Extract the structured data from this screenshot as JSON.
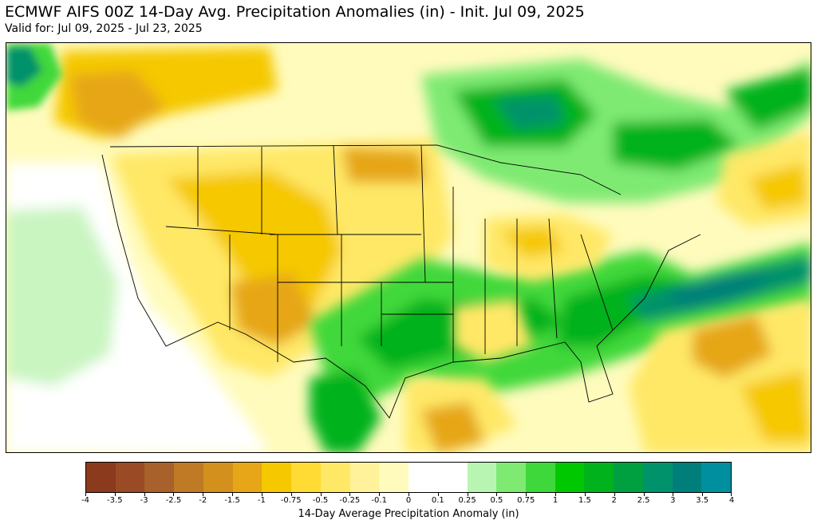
{
  "header": {
    "title": "ECMWF AIFS 00Z 14-Day Avg. Precipitation Anomalies (in) - Init. Jul 09, 2025",
    "subtitle": "Valid for: Jul 09, 2025 - Jul 23, 2025"
  },
  "colorbar": {
    "label": "14-Day Average Precipitation Anomaly (in)",
    "ticks": [
      "-4",
      "-3.5",
      "-3",
      "-2.5",
      "-2",
      "-1.5",
      "-1",
      "-0.75",
      "-0.5",
      "-0.25",
      "-0.1",
      "0",
      "0.1",
      "0.25",
      "0.5",
      "0.75",
      "1",
      "1.5",
      "2",
      "2.5",
      "3",
      "3.5",
      "4"
    ],
    "colors": [
      "#8b3a1e",
      "#9a4a25",
      "#a8612b",
      "#c07a25",
      "#d4901d",
      "#e6a618",
      "#f5c800",
      "#ffdb33",
      "#ffe866",
      "#fff29a",
      "#fffbbd",
      "#ffffff",
      "#ffffff",
      "#b8f5b2",
      "#7eea72",
      "#3fd83a",
      "#00c800",
      "#00b21c",
      "#00a040",
      "#00926a",
      "#007f7a",
      "#008f9e",
      "#00a3b8"
    ]
  },
  "map": {
    "region": "Continental United States",
    "palette": {
      "ocean_west": "#c9f5c1",
      "coast_white": "#ffffff",
      "dry_light": "#fffbbd",
      "dry_mid": "#ffe866",
      "dry_strong": "#f5c800",
      "dry_deep": "#e6a618",
      "dry_brown": "#c07a25",
      "wet_light": "#b8f5b2",
      "wet_mid": "#3fd83a",
      "wet_strong": "#00b21c",
      "wet_deep": "#00926a",
      "wet_teal": "#007f7a"
    }
  }
}
